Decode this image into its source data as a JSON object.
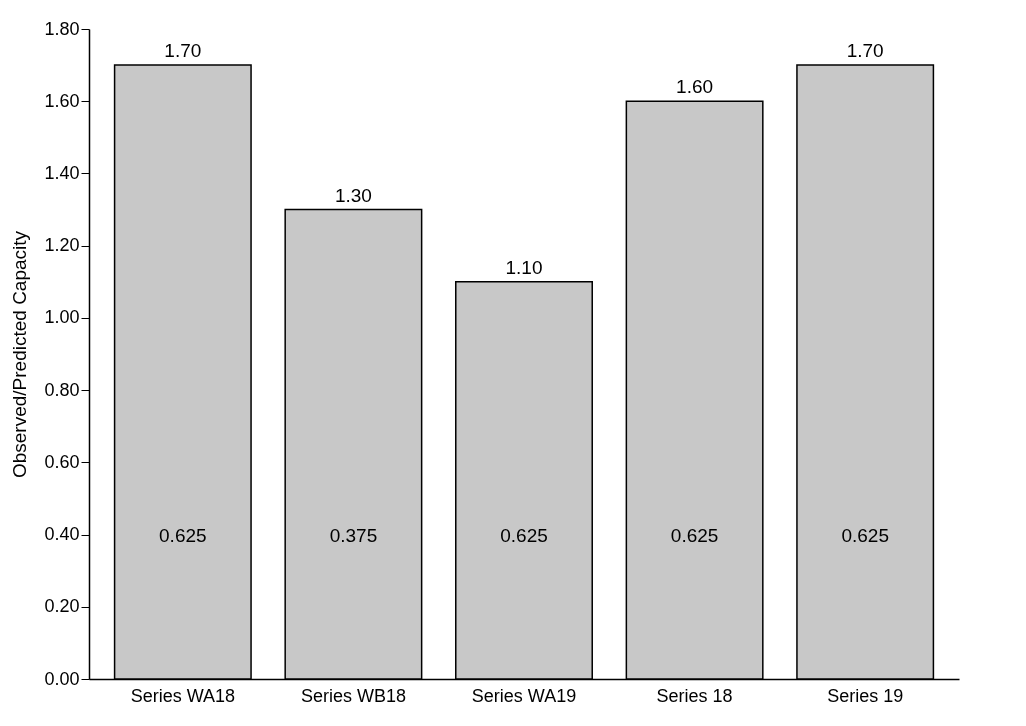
{
  "chart_data": {
    "type": "bar",
    "ylabel": "Observed/Predicted Capacity",
    "categories": [
      "Series WA18",
      "Series WB18",
      "Series WA19",
      "Series 18",
      "Series 19"
    ],
    "values": [
      1.7,
      1.3,
      1.1,
      1.6,
      1.7
    ],
    "value_labels": [
      "1.70",
      "1.30",
      "1.10",
      "1.60",
      "1.70"
    ],
    "color": "#c8c8c8",
    "ylim": [
      0,
      1.8
    ],
    "yticks": [
      {
        "value": 0,
        "label": "0.00"
      },
      {
        "value": 0.2,
        "label": "0.20"
      },
      {
        "value": 0.4,
        "label": "0.40"
      },
      {
        "value": 0.6,
        "label": "0.60"
      },
      {
        "value": 0.8,
        "label": "0.80"
      },
      {
        "value": 1,
        "label": "1.00"
      },
      {
        "value": 1.2,
        "label": "1.20"
      },
      {
        "value": 1.4,
        "label": "1.40"
      },
      {
        "value": 1.6,
        "label": "1.60"
      },
      {
        "value": 1.8,
        "label": "1.80"
      }
    ],
    "grid": false,
    "annotations": [
      "0.625",
      "0.375",
      "0.625",
      "0.625",
      "0.625"
    ]
  }
}
